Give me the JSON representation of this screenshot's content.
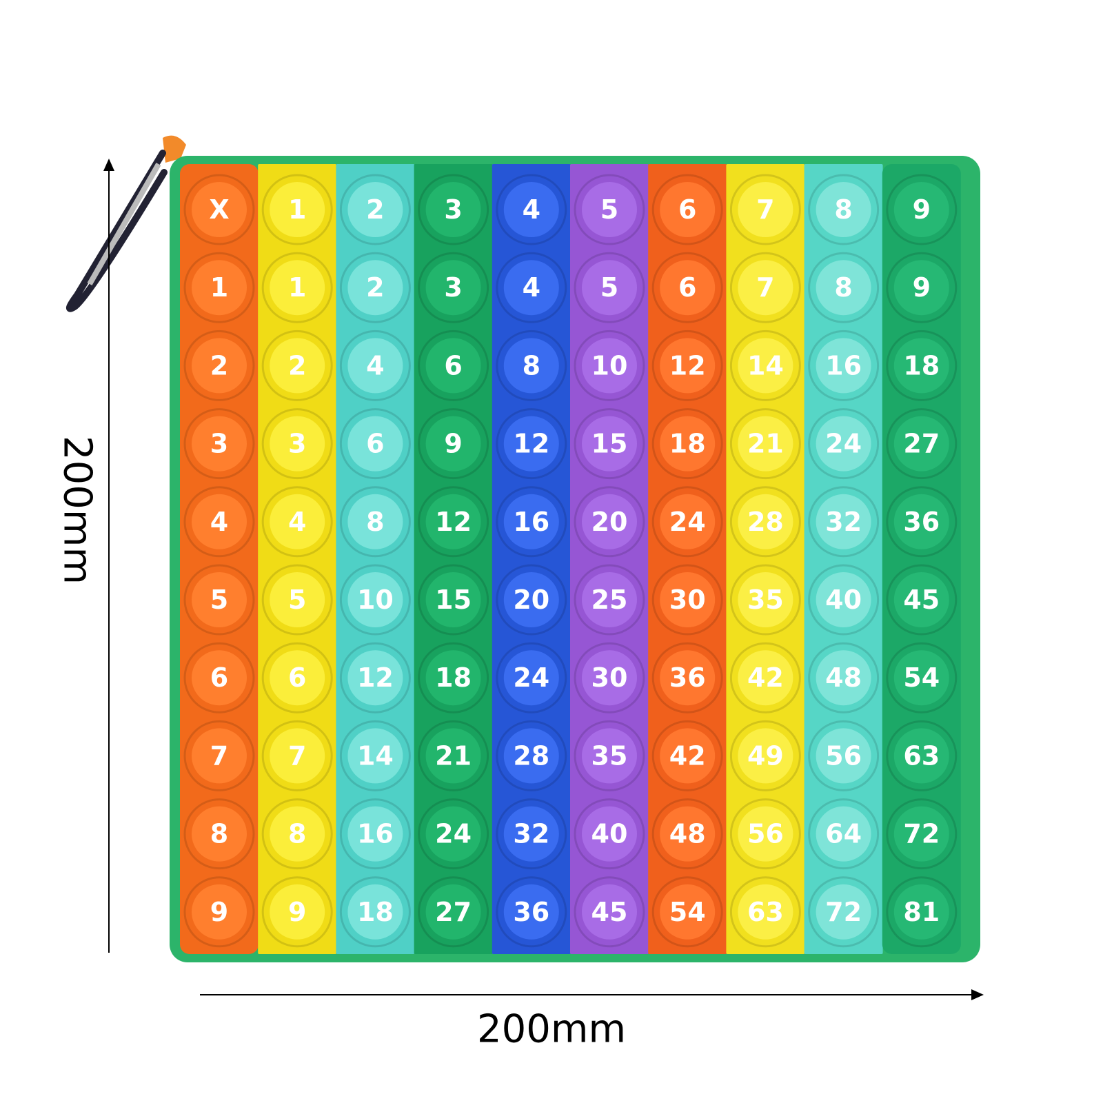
{
  "dimensions": {
    "height_label": "200mm",
    "width_label": "200mm"
  },
  "grid": {
    "rows": [
      [
        "X",
        "1",
        "2",
        "3",
        "4",
        "5",
        "6",
        "7",
        "8",
        "9"
      ],
      [
        "1",
        "1",
        "2",
        "3",
        "4",
        "5",
        "6",
        "7",
        "8",
        "9"
      ],
      [
        "2",
        "2",
        "4",
        "6",
        "8",
        "10",
        "12",
        "14",
        "16",
        "18"
      ],
      [
        "3",
        "3",
        "6",
        "9",
        "12",
        "15",
        "18",
        "21",
        "24",
        "27"
      ],
      [
        "4",
        "4",
        "8",
        "12",
        "16",
        "20",
        "24",
        "28",
        "32",
        "36"
      ],
      [
        "5",
        "5",
        "10",
        "15",
        "20",
        "25",
        "30",
        "35",
        "40",
        "45"
      ],
      [
        "6",
        "6",
        "12",
        "18",
        "24",
        "30",
        "36",
        "42",
        "48",
        "54"
      ],
      [
        "7",
        "7",
        "14",
        "21",
        "28",
        "35",
        "42",
        "49",
        "56",
        "63"
      ],
      [
        "8",
        "8",
        "16",
        "24",
        "32",
        "40",
        "48",
        "56",
        "64",
        "72"
      ],
      [
        "9",
        "9",
        "18",
        "27",
        "36",
        "45",
        "54",
        "63",
        "72",
        "81"
      ]
    ]
  }
}
